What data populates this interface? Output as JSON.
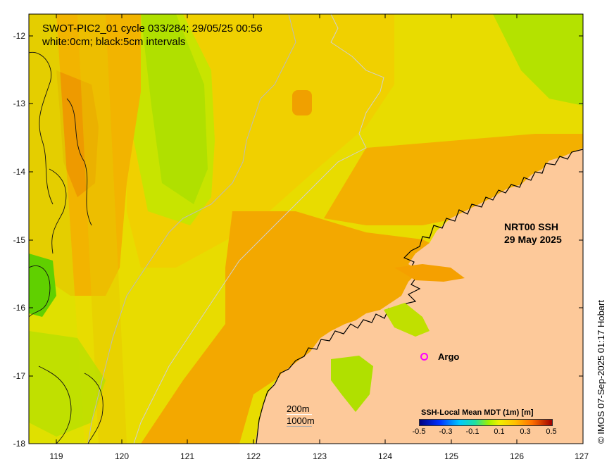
{
  "title": {
    "line1": "SWOT-PIC2_01 cycle 033/284; 29/05/25 00:56",
    "line2": "white:0cm; black:5cm intervals"
  },
  "product": {
    "name": "NRT00 SSH",
    "date": "29 May 2025"
  },
  "argo": {
    "label": "Argo",
    "marker_color": "#ff00ff",
    "longitude": 124.55,
    "latitude": -16.72
  },
  "depth_legend": {
    "contour_200": "200m",
    "contour_1000": "1000m"
  },
  "axes": {
    "y_ticks": [
      "-12",
      "-13",
      "-14",
      "-15",
      "-16",
      "-17",
      "-18"
    ],
    "x_ticks": [
      "119",
      "120",
      "121",
      "122",
      "123",
      "124",
      "125",
      "126",
      "127"
    ],
    "lon_range": [
      118.6,
      127
    ],
    "lat_range": [
      -18,
      -11.8
    ]
  },
  "colorbar": {
    "title": "SSH-Local Mean MDT (1m) [m]",
    "ticks": [
      "-0.5",
      "-0.3",
      "-0.1",
      "0.1",
      "0.3",
      "0.5"
    ],
    "range": [
      -0.5,
      0.5
    ]
  },
  "credit": "© IMOS 07-Sep-2025 01:17 Hobart",
  "colors": {
    "land": "#fdc99a",
    "sea_orange": "#f5a700",
    "sea_yellow": "#eaea00",
    "sea_green": "#a8e000",
    "coast": "#000000"
  }
}
